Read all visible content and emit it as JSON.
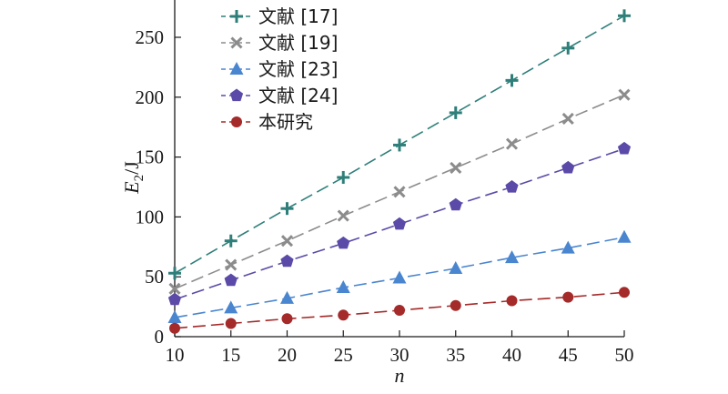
{
  "chart_data": {
    "type": "line",
    "x": [
      10,
      15,
      20,
      25,
      30,
      35,
      40,
      45,
      50
    ],
    "xlabel": "n",
    "ylabel_main": "E",
    "ylabel_sub": "2",
    "ylabel_unit": "/J",
    "xlim": [
      10,
      50
    ],
    "ylim": [
      0,
      280
    ],
    "xticks": [
      10,
      15,
      20,
      25,
      30,
      35,
      40,
      45,
      50
    ],
    "yticks": [
      0,
      50,
      100,
      150,
      200,
      250
    ],
    "grid": false,
    "legend_position": "top-left",
    "series": [
      {
        "name": "文献 [17]",
        "color": "#2e7f7a",
        "marker": "plus",
        "values": [
          53,
          80,
          107,
          133,
          160,
          187,
          214,
          241,
          268
        ]
      },
      {
        "name": "文献 [19]",
        "color": "#8c8c8c",
        "marker": "x",
        "values": [
          40,
          60,
          80,
          101,
          121,
          141,
          161,
          182,
          202
        ]
      },
      {
        "name": "文献 [23]",
        "color": "#4a86d0",
        "marker": "triangle",
        "values": [
          16,
          24,
          32,
          41,
          49,
          57,
          66,
          74,
          83
        ]
      },
      {
        "name": "文献 [24]",
        "color": "#5b4aa8",
        "marker": "pentagon",
        "values": [
          31,
          47,
          63,
          78,
          94,
          110,
          125,
          141,
          157
        ]
      },
      {
        "name": "本研究",
        "color": "#a52a2a",
        "marker": "circle",
        "values": [
          7,
          11,
          15,
          18,
          22,
          26,
          30,
          33,
          37
        ]
      }
    ]
  }
}
